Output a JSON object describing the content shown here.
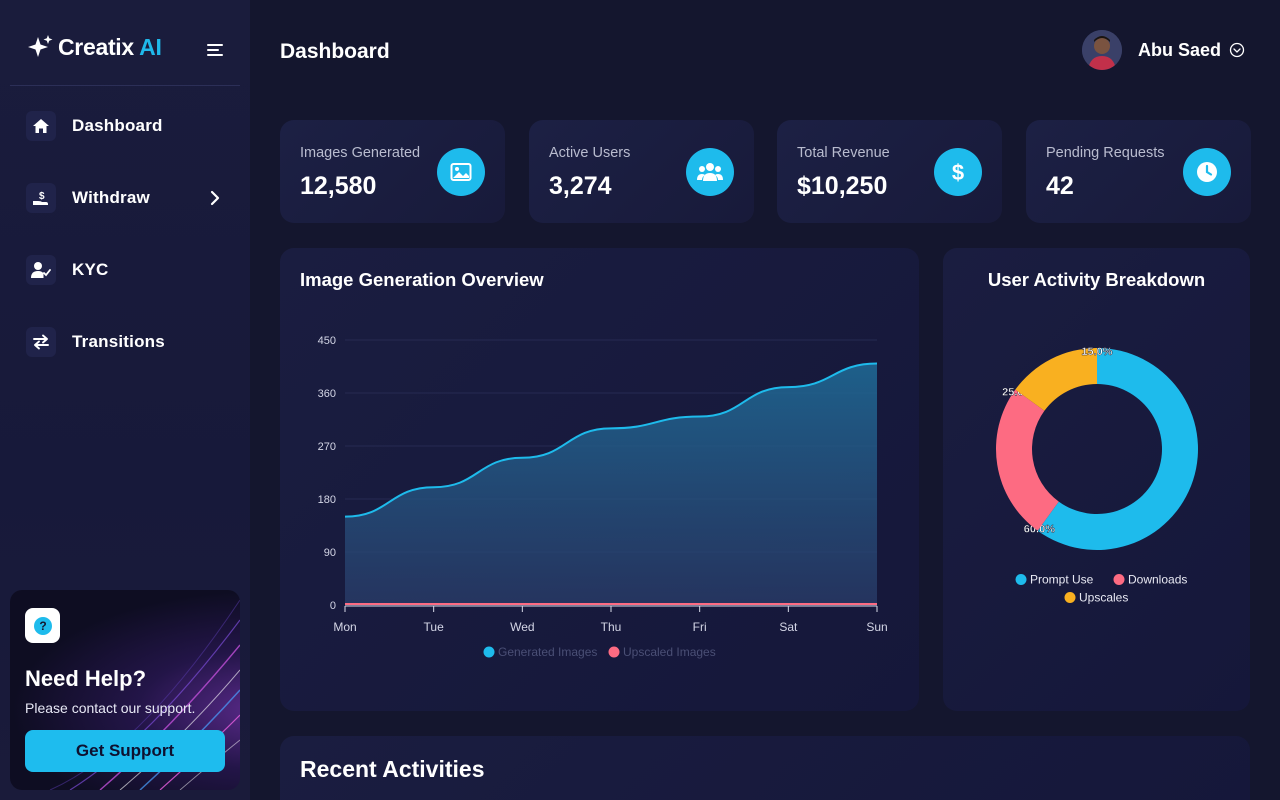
{
  "brand": {
    "name": "Creatix",
    "suffix": "AI"
  },
  "sidebar": {
    "items": [
      {
        "label": "Dashboard",
        "icon": "home-icon"
      },
      {
        "label": "Withdraw",
        "icon": "withdraw-icon"
      },
      {
        "label": "KYC",
        "icon": "user-check-icon"
      },
      {
        "label": "Transitions",
        "icon": "transfer-icon"
      }
    ]
  },
  "help": {
    "title": "Need Help?",
    "subtitle": "Please contact our support.",
    "button": "Get Support",
    "icon": "question-icon"
  },
  "header": {
    "title": "Dashboard",
    "user_name": "Abu Saed"
  },
  "stats": [
    {
      "label": "Images Generated",
      "value": "12,580",
      "icon": "image-icon"
    },
    {
      "label": "Active Users",
      "value": "3,274",
      "icon": "users-icon"
    },
    {
      "label": "Total Revenue",
      "value": "$10,250",
      "icon": "dollar-icon"
    },
    {
      "label": "Pending Requests",
      "value": "42",
      "icon": "clock-icon"
    }
  ],
  "colors": {
    "accent": "#1ebbec",
    "pink": "#fd6b82",
    "amber": "#f9b020",
    "bg": "#14162e"
  },
  "chart_data": [
    {
      "type": "area",
      "title": "Image Generation Overview",
      "categories": [
        "Mon",
        "Tue",
        "Wed",
        "Thu",
        "Fri",
        "Sat",
        "Sun"
      ],
      "series": [
        {
          "name": "Generated Images",
          "values": [
            150,
            200,
            250,
            300,
            320,
            370,
            410
          ],
          "color": "#1ebbec"
        },
        {
          "name": "Upscaled Images",
          "values": [
            0,
            0,
            0,
            0,
            0,
            0,
            0
          ],
          "color": "#fd6b82"
        }
      ],
      "yticks": [
        "0",
        "90",
        "180",
        "270",
        "360",
        "450"
      ],
      "ylim": [
        0,
        450
      ],
      "grid": true,
      "legend": "bottom"
    },
    {
      "type": "pie",
      "title": "User Activity Breakdown",
      "slices": [
        {
          "name": "Prompt Use",
          "value": 60,
          "label": "60.0%",
          "color": "#1ebbec"
        },
        {
          "name": "Downloads",
          "value": 25,
          "label": "25.0%",
          "color": "#fd6b82"
        },
        {
          "name": "Upscales",
          "value": 15,
          "label": "15.0%",
          "color": "#f9b020"
        }
      ],
      "donut": true,
      "legend": "bottom"
    }
  ],
  "recent": {
    "title": "Recent Activities"
  }
}
